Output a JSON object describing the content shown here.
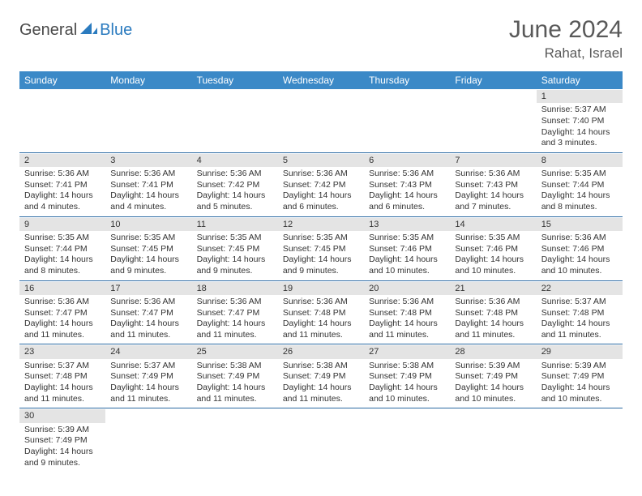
{
  "logo": {
    "part1": "General",
    "part2": "Blue"
  },
  "title": "June 2024",
  "location": "Rahat, Israel",
  "colors": {
    "header_bg": "#3b89c7",
    "header_text": "#ffffff",
    "daynum_bg": "#e4e4e4",
    "rule": "#2b6aa3",
    "title_color": "#595959",
    "logo_blue": "#2b7bbf",
    "logo_gray": "#4a4a4a"
  },
  "weekdays": [
    "Sunday",
    "Monday",
    "Tuesday",
    "Wednesday",
    "Thursday",
    "Friday",
    "Saturday"
  ],
  "grid": [
    [
      null,
      null,
      null,
      null,
      null,
      null,
      {
        "d": "1",
        "sr": "5:37 AM",
        "ss": "7:40 PM",
        "dl": "14 hours and 3 minutes."
      }
    ],
    [
      {
        "d": "2",
        "sr": "5:36 AM",
        "ss": "7:41 PM",
        "dl": "14 hours and 4 minutes."
      },
      {
        "d": "3",
        "sr": "5:36 AM",
        "ss": "7:41 PM",
        "dl": "14 hours and 4 minutes."
      },
      {
        "d": "4",
        "sr": "5:36 AM",
        "ss": "7:42 PM",
        "dl": "14 hours and 5 minutes."
      },
      {
        "d": "5",
        "sr": "5:36 AM",
        "ss": "7:42 PM",
        "dl": "14 hours and 6 minutes."
      },
      {
        "d": "6",
        "sr": "5:36 AM",
        "ss": "7:43 PM",
        "dl": "14 hours and 6 minutes."
      },
      {
        "d": "7",
        "sr": "5:36 AM",
        "ss": "7:43 PM",
        "dl": "14 hours and 7 minutes."
      },
      {
        "d": "8",
        "sr": "5:35 AM",
        "ss": "7:44 PM",
        "dl": "14 hours and 8 minutes."
      }
    ],
    [
      {
        "d": "9",
        "sr": "5:35 AM",
        "ss": "7:44 PM",
        "dl": "14 hours and 8 minutes."
      },
      {
        "d": "10",
        "sr": "5:35 AM",
        "ss": "7:45 PM",
        "dl": "14 hours and 9 minutes."
      },
      {
        "d": "11",
        "sr": "5:35 AM",
        "ss": "7:45 PM",
        "dl": "14 hours and 9 minutes."
      },
      {
        "d": "12",
        "sr": "5:35 AM",
        "ss": "7:45 PM",
        "dl": "14 hours and 9 minutes."
      },
      {
        "d": "13",
        "sr": "5:35 AM",
        "ss": "7:46 PM",
        "dl": "14 hours and 10 minutes."
      },
      {
        "d": "14",
        "sr": "5:35 AM",
        "ss": "7:46 PM",
        "dl": "14 hours and 10 minutes."
      },
      {
        "d": "15",
        "sr": "5:36 AM",
        "ss": "7:46 PM",
        "dl": "14 hours and 10 minutes."
      }
    ],
    [
      {
        "d": "16",
        "sr": "5:36 AM",
        "ss": "7:47 PM",
        "dl": "14 hours and 11 minutes."
      },
      {
        "d": "17",
        "sr": "5:36 AM",
        "ss": "7:47 PM",
        "dl": "14 hours and 11 minutes."
      },
      {
        "d": "18",
        "sr": "5:36 AM",
        "ss": "7:47 PM",
        "dl": "14 hours and 11 minutes."
      },
      {
        "d": "19",
        "sr": "5:36 AM",
        "ss": "7:48 PM",
        "dl": "14 hours and 11 minutes."
      },
      {
        "d": "20",
        "sr": "5:36 AM",
        "ss": "7:48 PM",
        "dl": "14 hours and 11 minutes."
      },
      {
        "d": "21",
        "sr": "5:36 AM",
        "ss": "7:48 PM",
        "dl": "14 hours and 11 minutes."
      },
      {
        "d": "22",
        "sr": "5:37 AM",
        "ss": "7:48 PM",
        "dl": "14 hours and 11 minutes."
      }
    ],
    [
      {
        "d": "23",
        "sr": "5:37 AM",
        "ss": "7:48 PM",
        "dl": "14 hours and 11 minutes."
      },
      {
        "d": "24",
        "sr": "5:37 AM",
        "ss": "7:49 PM",
        "dl": "14 hours and 11 minutes."
      },
      {
        "d": "25",
        "sr": "5:38 AM",
        "ss": "7:49 PM",
        "dl": "14 hours and 11 minutes."
      },
      {
        "d": "26",
        "sr": "5:38 AM",
        "ss": "7:49 PM",
        "dl": "14 hours and 11 minutes."
      },
      {
        "d": "27",
        "sr": "5:38 AM",
        "ss": "7:49 PM",
        "dl": "14 hours and 10 minutes."
      },
      {
        "d": "28",
        "sr": "5:39 AM",
        "ss": "7:49 PM",
        "dl": "14 hours and 10 minutes."
      },
      {
        "d": "29",
        "sr": "5:39 AM",
        "ss": "7:49 PM",
        "dl": "14 hours and 10 minutes."
      }
    ],
    [
      {
        "d": "30",
        "sr": "5:39 AM",
        "ss": "7:49 PM",
        "dl": "14 hours and 9 minutes."
      },
      null,
      null,
      null,
      null,
      null,
      null
    ]
  ],
  "labels": {
    "sunrise": "Sunrise:",
    "sunset": "Sunset:",
    "daylight": "Daylight:"
  }
}
